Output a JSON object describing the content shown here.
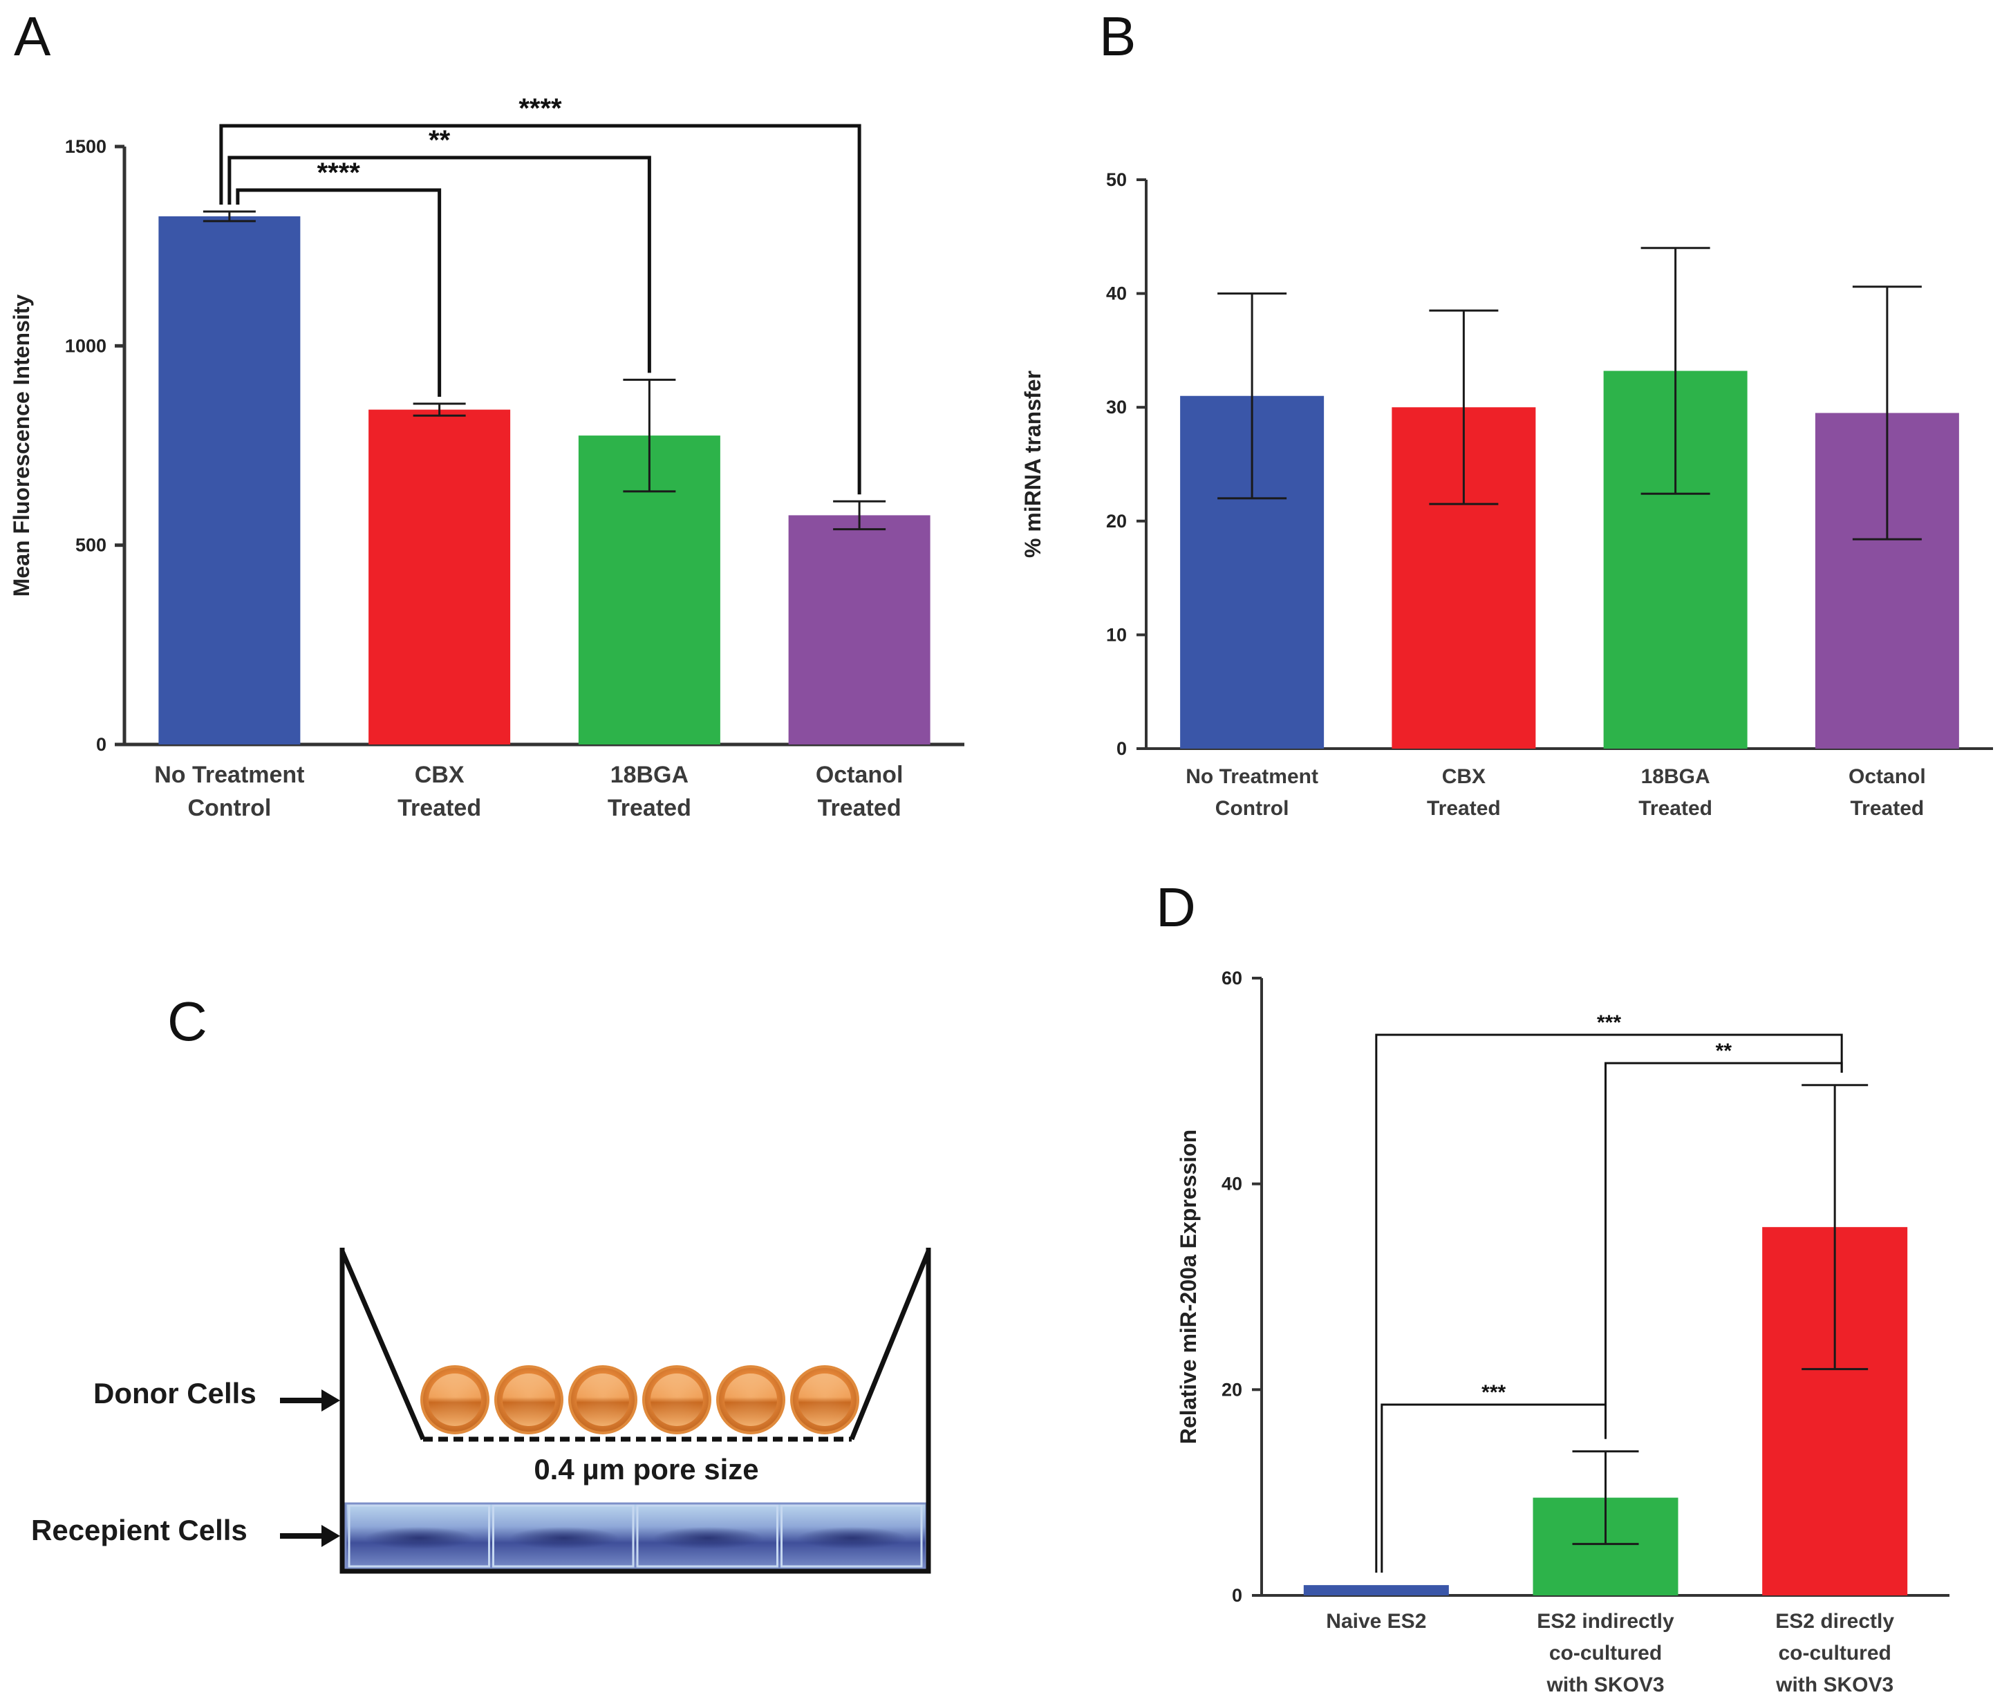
{
  "panel_labels": {
    "a": "A",
    "b": "B",
    "c": "C",
    "d": "D"
  },
  "chart_data": [
    {
      "id": "A",
      "type": "bar",
      "ylabel": "Mean Fluorescence Intensity",
      "ylim": [
        0,
        1500
      ],
      "yticks": [
        0,
        500,
        1000,
        1500
      ],
      "categories": [
        [
          "No Treatment",
          "Control"
        ],
        [
          "CBX",
          "Treated"
        ],
        [
          "18BGA",
          "Treated"
        ],
        [
          "Octanol",
          "Treated"
        ]
      ],
      "values": [
        1325,
        840,
        775,
        575
      ],
      "error": [
        12,
        15,
        140,
        35
      ],
      "colors": [
        "#3a56a8",
        "#ee2128",
        "#2db34a",
        "#8a4f9f"
      ],
      "significance": [
        {
          "from": 0,
          "to": 1,
          "label": "****"
        },
        {
          "from": 0,
          "to": 2,
          "label": "**"
        },
        {
          "from": 0,
          "to": 3,
          "label": "****"
        }
      ]
    },
    {
      "id": "B",
      "type": "bar",
      "ylabel": "% miRNA transfer",
      "ylim": [
        0,
        50
      ],
      "yticks": [
        0,
        10,
        20,
        30,
        40,
        50
      ],
      "categories": [
        [
          "No Treatment",
          "Control"
        ],
        [
          "CBX",
          "Treated"
        ],
        [
          "18BGA",
          "Treated"
        ],
        [
          "Octanol",
          "Treated"
        ]
      ],
      "values": [
        31,
        30,
        33.2,
        29.5
      ],
      "error": [
        9,
        8.5,
        10.8,
        11.1
      ],
      "colors": [
        "#3a56a8",
        "#ee2128",
        "#2db34a",
        "#8a4f9f"
      ],
      "significance": []
    },
    {
      "id": "D",
      "type": "bar",
      "ylabel": "Relative miR-200a Expression",
      "ylim": [
        0,
        60
      ],
      "yticks": [
        0,
        20,
        40,
        60
      ],
      "categories": [
        [
          "Naive ES2"
        ],
        [
          "ES2 indirectly",
          "co-cultured",
          "with SKOV3"
        ],
        [
          "ES2 directly",
          "co-cultured",
          "with SKOV3"
        ]
      ],
      "values": [
        1,
        9.5,
        35.8
      ],
      "error": [
        0,
        4.5,
        13.8
      ],
      "colors": [
        "#3a56a8",
        "#2db34a",
        "#ee2128"
      ],
      "significance": [
        {
          "from": 0,
          "to": 1,
          "label": "***"
        },
        {
          "from": 0,
          "to": 2,
          "label": "***"
        },
        {
          "from": 1,
          "to": 2,
          "label": "**"
        }
      ]
    }
  ],
  "diagram": {
    "donor_label": "Donor Cells",
    "recipient_label": "Recepient Cells",
    "pore_label": "0.4 µm pore size",
    "donor_cell_count": 6,
    "recipient_cell_count": 4,
    "cell_color": "#e8893a",
    "membrane_color": "#3f4f9a"
  }
}
